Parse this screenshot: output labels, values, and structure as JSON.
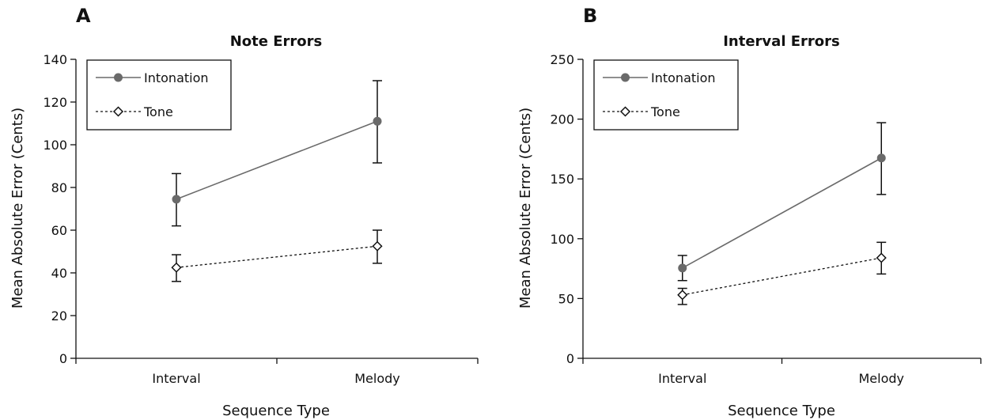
{
  "chart_data": [
    {
      "panel": "A",
      "type": "line",
      "title": "Note Errors",
      "xlabel": "Sequence Type",
      "ylabel": "Mean Absolute Error (Cents)",
      "categories": [
        "Interval",
        "Melody"
      ],
      "ylim": [
        0,
        140
      ],
      "yticks": [
        0,
        20,
        40,
        60,
        80,
        100,
        120,
        140
      ],
      "legend_position": "top-left",
      "grid": false,
      "series": [
        {
          "name": "Intonation",
          "values": [
            74.5,
            111
          ],
          "error_low": [
            62,
            91.5
          ],
          "error_high": [
            86.5,
            130
          ],
          "color": "#6a6a6a",
          "line": "solid",
          "marker": "filled-circle"
        },
        {
          "name": "Tone",
          "values": [
            42.5,
            52.5
          ],
          "error_low": [
            36,
            44.5
          ],
          "error_high": [
            48.5,
            60
          ],
          "color": "#111111",
          "line": "dotted",
          "marker": "open-diamond"
        }
      ]
    },
    {
      "panel": "B",
      "type": "line",
      "title": "Interval Errors",
      "xlabel": "Sequence Type",
      "ylabel": "Mean Absolute Error (Cents)",
      "categories": [
        "Interval",
        "Melody"
      ],
      "ylim": [
        0,
        250
      ],
      "yticks": [
        0,
        50,
        100,
        150,
        200,
        250
      ],
      "legend_position": "top-left",
      "grid": false,
      "series": [
        {
          "name": "Intonation",
          "values": [
            75.5,
            167.5
          ],
          "error_low": [
            65,
            137
          ],
          "error_high": [
            86,
            197
          ],
          "color": "#6a6a6a",
          "line": "solid",
          "marker": "filled-circle"
        },
        {
          "name": "Tone",
          "values": [
            53,
            84
          ],
          "error_low": [
            45,
            70.5
          ],
          "error_high": [
            58.5,
            97
          ],
          "color": "#111111",
          "line": "dotted",
          "marker": "open-diamond"
        }
      ]
    }
  ]
}
